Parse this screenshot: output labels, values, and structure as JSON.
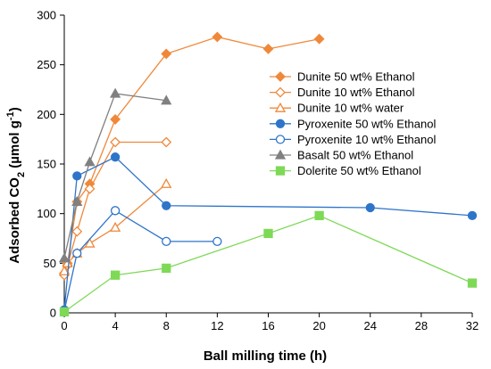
{
  "chart_data": {
    "type": "line",
    "xlabel": "Ball milling time (h)",
    "ylabel": {
      "prefix": "Adsorbed CO",
      "subscript": "2",
      "suffix": " (µmol g",
      "superscript": "-1",
      "close": ")"
    },
    "xlim": [
      0,
      32
    ],
    "ylim": [
      0,
      300
    ],
    "xticks": [
      "0",
      "4",
      "8",
      "12",
      "16",
      "20",
      "24",
      "28",
      "32"
    ],
    "yticks": [
      "0",
      "50",
      "100",
      "150",
      "200",
      "250",
      "300"
    ],
    "grid": false,
    "legend_position": "right",
    "series": [
      {
        "name": "Dunite 50 wt% Ethanol",
        "color": "#f0883a",
        "marker": "diamond",
        "filled": true,
        "x": [
          0,
          0.25,
          1,
          2,
          4,
          8,
          12,
          16,
          20
        ],
        "y": [
          40,
          50,
          112,
          130,
          195,
          261,
          278,
          266,
          276
        ]
      },
      {
        "name": "Dunite 10 wt% Ethanol",
        "color": "#f0883a",
        "marker": "diamond",
        "filled": false,
        "x": [
          0,
          0.25,
          1,
          2,
          4,
          8
        ],
        "y": [
          38,
          48,
          82,
          125,
          172,
          172
        ]
      },
      {
        "name": "Dunite 10 wt% water",
        "color": "#f0883a",
        "marker": "triangle",
        "filled": false,
        "x": [
          0,
          0.25,
          1,
          2,
          4,
          8
        ],
        "y": [
          42,
          50,
          60,
          70,
          86,
          130
        ]
      },
      {
        "name": "Pyroxenite 50 wt% Ethanol",
        "color": "#2e75c9",
        "marker": "circle",
        "filled": true,
        "x": [
          0,
          1,
          4,
          8,
          24,
          32
        ],
        "y": [
          3,
          138,
          157,
          108,
          106,
          98
        ]
      },
      {
        "name": "Pyroxenite 10 wt% Ethanol",
        "color": "#2e75c9",
        "marker": "circle",
        "filled": false,
        "x": [
          0,
          1,
          4,
          8,
          12
        ],
        "y": [
          2,
          60,
          103,
          72,
          72
        ]
      },
      {
        "name": "Basalt 50 wt% Ethanol",
        "color": "#808080",
        "marker": "triangle",
        "filled": true,
        "x": [
          0,
          1,
          2,
          4,
          8
        ],
        "y": [
          55,
          112,
          152,
          221,
          214
        ]
      },
      {
        "name": "Dolerite 50 wt% Ethanol",
        "color": "#7ed957",
        "marker": "square",
        "filled": true,
        "x": [
          0,
          4,
          8,
          16,
          20,
          32
        ],
        "y": [
          1,
          38,
          45,
          80,
          98,
          30
        ]
      }
    ]
  }
}
